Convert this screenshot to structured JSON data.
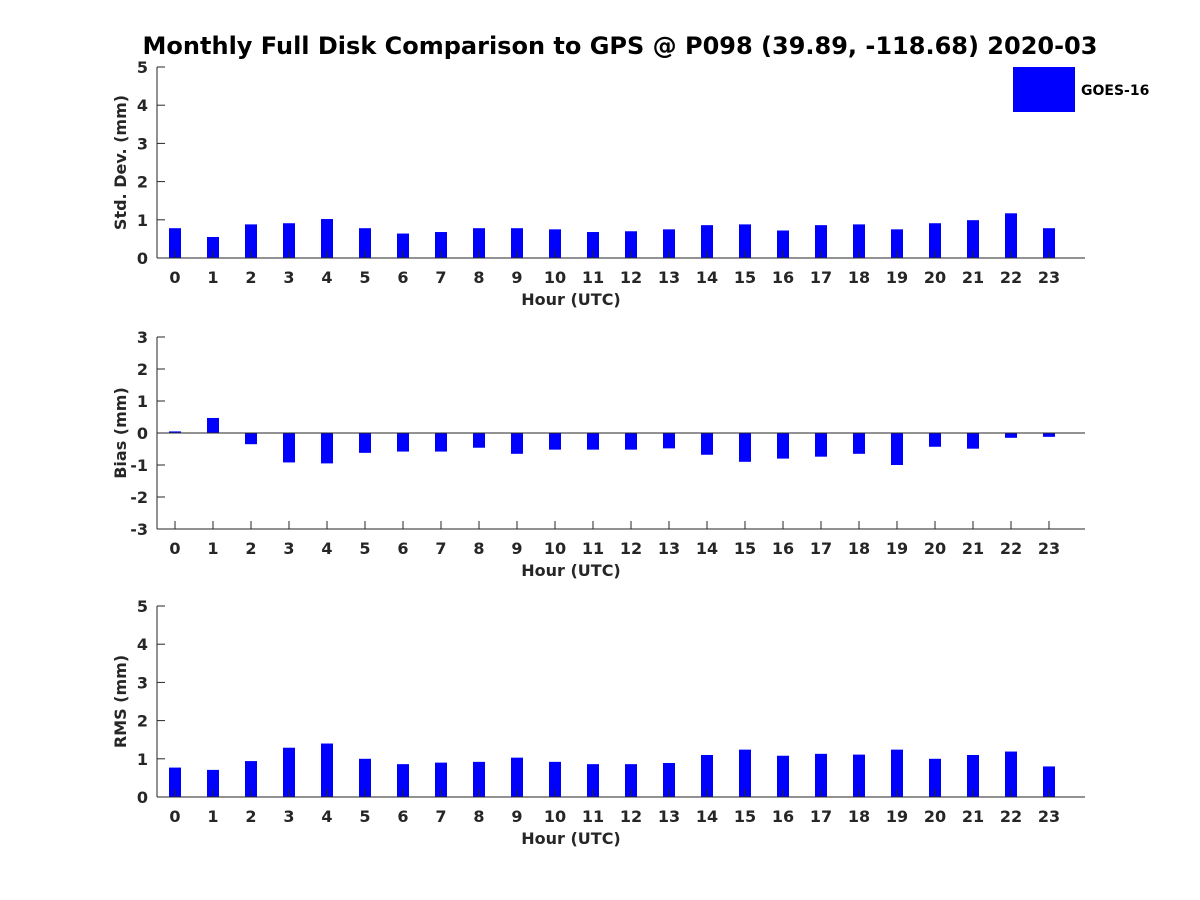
{
  "title": "Monthly Full Disk Comparison to GPS @ P098 (39.89, -118.68) 2020-03",
  "legend": {
    "label": "GOES-16",
    "color": "#0000ff"
  },
  "chart_data": [
    {
      "type": "bar",
      "name": "std",
      "ylabel": "Std. Dev. (mm)",
      "xlabel": "Hour (UTC)",
      "ylim": [
        0,
        5
      ],
      "yticks": [
        0,
        1,
        2,
        3,
        4,
        5
      ],
      "categories": [
        "0",
        "1",
        "2",
        "3",
        "4",
        "5",
        "6",
        "7",
        "8",
        "9",
        "10",
        "11",
        "12",
        "13",
        "14",
        "15",
        "16",
        "17",
        "18",
        "19",
        "20",
        "21",
        "22",
        "23"
      ],
      "series": [
        {
          "name": "GOES-16",
          "color": "#0000ff",
          "values": [
            0.78,
            0.55,
            0.88,
            0.91,
            1.02,
            0.78,
            0.64,
            0.68,
            0.78,
            0.78,
            0.75,
            0.68,
            0.7,
            0.75,
            0.86,
            0.88,
            0.72,
            0.86,
            0.88,
            0.75,
            0.91,
            0.99,
            1.17,
            0.78
          ]
        }
      ]
    },
    {
      "type": "bar",
      "name": "bias",
      "ylabel": "Bias (mm)",
      "xlabel": "Hour (UTC)",
      "ylim": [
        -3,
        3
      ],
      "yticks": [
        -3,
        -2,
        -1,
        0,
        1,
        2,
        3
      ],
      "zero_line": true,
      "categories": [
        "0",
        "1",
        "2",
        "3",
        "4",
        "5",
        "6",
        "7",
        "8",
        "9",
        "10",
        "11",
        "12",
        "13",
        "14",
        "15",
        "16",
        "17",
        "18",
        "19",
        "20",
        "21",
        "22",
        "23"
      ],
      "series": [
        {
          "name": "GOES-16",
          "color": "#0000ff",
          "values": [
            0.05,
            0.47,
            -0.35,
            -0.92,
            -0.95,
            -0.62,
            -0.58,
            -0.58,
            -0.46,
            -0.65,
            -0.52,
            -0.52,
            -0.52,
            -0.48,
            -0.68,
            -0.9,
            -0.8,
            -0.74,
            -0.65,
            -1.0,
            -0.43,
            -0.49,
            -0.15,
            -0.12
          ]
        }
      ]
    },
    {
      "type": "bar",
      "name": "rms",
      "ylabel": "RMS (mm)",
      "xlabel": "Hour (UTC)",
      "ylim": [
        0,
        5
      ],
      "yticks": [
        0,
        1,
        2,
        3,
        4,
        5
      ],
      "categories": [
        "0",
        "1",
        "2",
        "3",
        "4",
        "5",
        "6",
        "7",
        "8",
        "9",
        "10",
        "11",
        "12",
        "13",
        "14",
        "15",
        "16",
        "17",
        "18",
        "19",
        "20",
        "21",
        "22",
        "23"
      ],
      "series": [
        {
          "name": "GOES-16",
          "color": "#0000ff",
          "values": [
            0.77,
            0.71,
            0.94,
            1.29,
            1.4,
            1.0,
            0.86,
            0.9,
            0.92,
            1.03,
            0.92,
            0.86,
            0.86,
            0.89,
            1.1,
            1.24,
            1.08,
            1.13,
            1.11,
            1.24,
            1.0,
            1.1,
            1.19,
            0.8
          ]
        }
      ]
    }
  ]
}
